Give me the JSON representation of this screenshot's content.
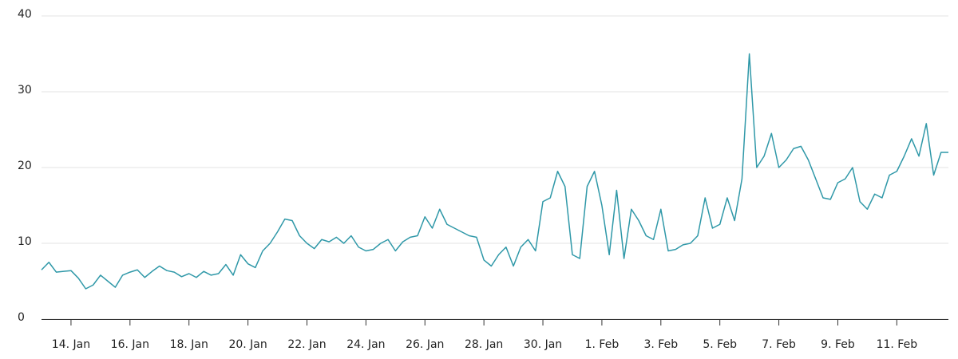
{
  "chart_data": {
    "type": "line",
    "categories": [
      null,
      null,
      null,
      null,
      "14. Jan",
      null,
      null,
      null,
      null,
      null,
      null,
      null,
      "16. Jan",
      null,
      null,
      null,
      null,
      null,
      null,
      null,
      "18. Jan",
      null,
      null,
      null,
      null,
      null,
      null,
      null,
      "20. Jan",
      null,
      null,
      null,
      null,
      null,
      null,
      null,
      "22. Jan",
      null,
      null,
      null,
      null,
      null,
      null,
      null,
      "24. Jan",
      null,
      null,
      null,
      null,
      null,
      null,
      null,
      "26. Jan",
      null,
      null,
      null,
      null,
      null,
      null,
      null,
      "28. Jan",
      null,
      null,
      null,
      null,
      null,
      null,
      null,
      "30. Jan",
      null,
      null,
      null,
      null,
      null,
      null,
      null,
      "1. Feb",
      null,
      null,
      null,
      null,
      null,
      null,
      null,
      "3. Feb",
      null,
      null,
      null,
      null,
      null,
      null,
      null,
      "5. Feb",
      null,
      null,
      null,
      null,
      null,
      null,
      null,
      "7. Feb",
      null,
      null,
      null,
      null,
      null,
      null,
      null,
      "9. Feb",
      null,
      null,
      null,
      null,
      null,
      null,
      null,
      "11. Feb",
      null,
      null,
      null,
      null,
      null,
      null,
      null
    ],
    "values": [
      6.5,
      7.5,
      6.2,
      6.3,
      6.4,
      5.4,
      4.0,
      4.5,
      5.8,
      5.0,
      4.2,
      5.8,
      6.2,
      6.5,
      5.5,
      6.3,
      7.0,
      6.4,
      6.2,
      5.6,
      6.0,
      5.5,
      6.3,
      5.8,
      6.0,
      7.2,
      5.8,
      8.5,
      7.3,
      6.8,
      9.0,
      10.0,
      11.5,
      13.2,
      13.0,
      11.0,
      10.0,
      9.3,
      10.5,
      10.2,
      10.8,
      10.0,
      11.0,
      9.5,
      9.0,
      9.2,
      10.0,
      10.5,
      9.0,
      10.2,
      10.8,
      11.0,
      13.5,
      12.0,
      14.5,
      12.5,
      12.0,
      11.5,
      11.0,
      10.8,
      7.8,
      7.0,
      8.5,
      9.5,
      7.0,
      9.5,
      10.5,
      9.0,
      15.5,
      16.0,
      19.5,
      17.5,
      8.5,
      8.0,
      17.5,
      19.5,
      15.0,
      8.5,
      17.0,
      8.0,
      14.5,
      13.0,
      11.0,
      10.5,
      14.5,
      9.0,
      9.2,
      9.8,
      10.0,
      11.0,
      16.0,
      12.0,
      12.5,
      16.0,
      13.0,
      18.5,
      35.0,
      20.0,
      21.5,
      24.5,
      20.0,
      21.0,
      22.5,
      22.8,
      21.0,
      18.5,
      16.0,
      15.8,
      18.0,
      18.5,
      20.0,
      15.5,
      14.5,
      16.5,
      16.0,
      19.0,
      19.5,
      21.5,
      23.8,
      21.5,
      25.8,
      19.0,
      22.0,
      22.0
    ],
    "color": "#2f98a8",
    "ylim": [
      0,
      40
    ],
    "yticks": [
      0,
      10,
      20,
      30,
      40
    ],
    "grid": true
  }
}
